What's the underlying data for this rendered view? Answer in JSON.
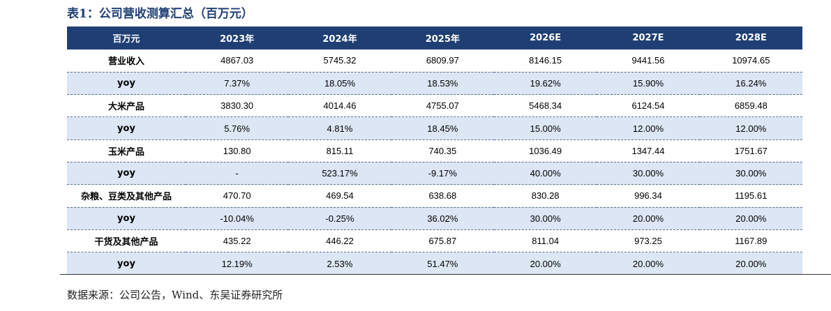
{
  "title": "表1：公司营收测算汇总（百万元）",
  "table": {
    "headers": [
      "百万元",
      "2023年",
      "2024年",
      "2025年",
      "2026E",
      "2027E",
      "2028E"
    ],
    "rows": [
      {
        "label": "营业收入",
        "values": [
          "4867.03",
          "5745.32",
          "6809.97",
          "8146.15",
          "9441.56",
          "10974.65"
        ]
      },
      {
        "label": "yoy",
        "values": [
          "7.37%",
          "18.05%",
          "18.53%",
          "19.62%",
          "15.90%",
          "16.24%"
        ]
      },
      {
        "label": "大米产品",
        "values": [
          "3830.30",
          "4014.46",
          "4755.07",
          "5468.34",
          "6124.54",
          "6859.48"
        ]
      },
      {
        "label": "yoy",
        "values": [
          "5.76%",
          "4.81%",
          "18.45%",
          "15.00%",
          "12.00%",
          "12.00%"
        ]
      },
      {
        "label": "玉米产品",
        "values": [
          "130.80",
          "815.11",
          "740.35",
          "1036.49",
          "1347.44",
          "1751.67"
        ]
      },
      {
        "label": "yoy",
        "values": [
          "-",
          "523.17%",
          "-9.17%",
          "40.00%",
          "30.00%",
          "30.00%"
        ]
      },
      {
        "label": "杂粮、豆类及其他产品",
        "values": [
          "470.70",
          "469.54",
          "638.68",
          "830.28",
          "996.34",
          "1195.61"
        ]
      },
      {
        "label": "yoy",
        "values": [
          "-10.04%",
          "-0.25%",
          "36.02%",
          "30.00%",
          "20.00%",
          "20.00%"
        ]
      },
      {
        "label": "干货及其他产品",
        "values": [
          "435.22",
          "446.22",
          "675.87",
          "811.04",
          "973.25",
          "1167.89"
        ]
      },
      {
        "label": "yoy",
        "values": [
          "12.19%",
          "2.53%",
          "51.47%",
          "20.00%",
          "20.00%",
          "20.00%"
        ]
      }
    ]
  },
  "source": "数据来源：公司公告，Wind、东吴证券研究所",
  "colors": {
    "header_bg": "#1f3f74",
    "header_text": "#ffffff",
    "shaded_row": "#dce6f4",
    "title_text": "#1f3f74"
  }
}
